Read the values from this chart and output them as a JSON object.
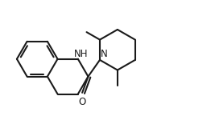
{
  "bg_color": "#ffffff",
  "line_color": "#1a1a1a",
  "line_width": 1.5,
  "nh_label": "NH",
  "n_label": "N",
  "o_label": "O",
  "font_size": 8.5,
  "fig_width": 2.67,
  "fig_height": 1.5,
  "dpi": 100,
  "xlim": [
    0.0,
    10.5
  ],
  "ylim": [
    0.0,
    5.5
  ]
}
